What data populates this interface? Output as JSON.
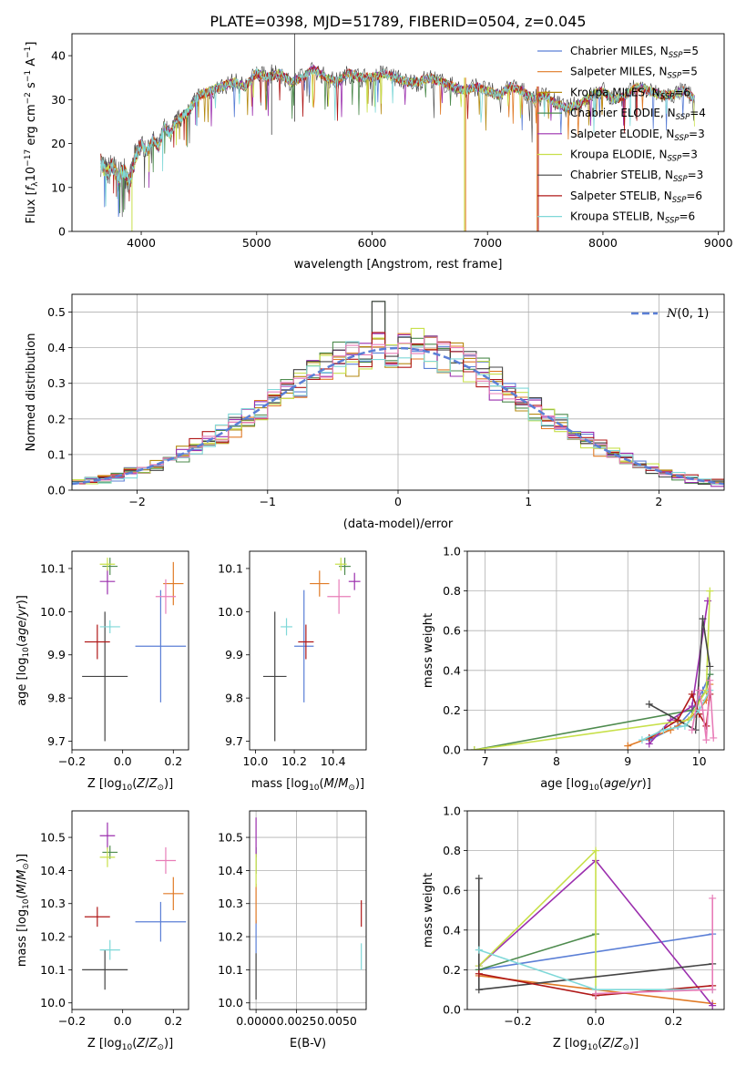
{
  "figure": {
    "title": "PLATE=0398, MJD=51789, FIBERID=0504, z=0.045"
  },
  "models": [
    {
      "label": "Chabrier MILES, N",
      "sub": "SSP",
      "tail": "=5",
      "color": "#5b7fd6"
    },
    {
      "label": "Salpeter MILES, N",
      "sub": "SSP",
      "tail": "=5",
      "color": "#e07a26"
    },
    {
      "label": "Kroupa MILES, N",
      "sub": "SSP",
      "tail": "=6",
      "color": "#b58a12"
    },
    {
      "label": "Chabrier ELODIE, N",
      "sub": "SSP",
      "tail": "=4",
      "color": "#4e8b4e"
    },
    {
      "label": "Salpeter ELODIE, N",
      "sub": "SSP",
      "tail": "=3",
      "color": "#9b2fae"
    },
    {
      "label": "Kroupa ELODIE, N",
      "sub": "SSP",
      "tail": "=3",
      "color": "#c8e04a"
    },
    {
      "label": "Chabrier STELIB, N",
      "sub": "SSP",
      "tail": "=3",
      "color": "#444444"
    },
    {
      "label": "Salpeter STELIB, N",
      "sub": "SSP",
      "tail": "=6",
      "color": "#b01818"
    },
    {
      "label": "Kroupa STELIB, N",
      "sub": "SSP",
      "tail": "=6",
      "color": "#7fd8d8"
    }
  ],
  "extra_colors": {
    "pink": "#e87db8"
  },
  "chart_data": [
    {
      "id": "spectrum",
      "type": "line",
      "xlabel": "wavelength [Angstrom, rest frame]",
      "ylabel": "Flux [f_λ 10^-17 erg cm^-2 s^-1 A^-1]",
      "xlim": [
        3400,
        9050
      ],
      "ylim": [
        0,
        45
      ],
      "xticks": [
        4000,
        5000,
        6000,
        7000,
        8000,
        9000
      ],
      "yticks": [
        0,
        10,
        20,
        30,
        40
      ],
      "x": [
        3650,
        3700,
        3750,
        3800,
        3850,
        3900,
        3950,
        4000,
        4050,
        4100,
        4150,
        4200,
        4250,
        4300,
        4350,
        4400,
        4450,
        4500,
        4600,
        4700,
        4800,
        4900,
        5000,
        5100,
        5200,
        5300,
        5400,
        5500,
        5600,
        5700,
        5800,
        5900,
        6000,
        6100,
        6200,
        6300,
        6400,
        6500,
        6600,
        6700,
        6800,
        6900,
        7000,
        7100,
        7200,
        7300,
        7400,
        7500,
        7600,
        7700,
        7800,
        7900,
        8000,
        8100,
        8200,
        8300,
        8400,
        8500,
        8600,
        8700,
        8800
      ],
      "y": [
        16,
        13,
        15,
        12,
        14,
        11,
        17,
        20,
        18,
        21,
        19,
        24,
        22,
        25,
        26,
        27,
        29,
        31,
        32,
        33,
        34,
        33,
        36,
        35,
        36,
        34,
        35,
        37,
        35,
        34,
        36,
        35,
        35,
        36,
        35,
        34,
        34,
        35,
        34,
        33,
        32,
        33,
        32,
        31,
        33,
        32,
        30,
        31,
        29,
        28,
        29,
        31,
        32,
        30,
        31,
        33,
        32,
        31,
        31,
        32,
        30
      ],
      "drops": [
        {
          "x": 3920,
          "to": 0,
          "model": 5
        },
        {
          "x": 6800,
          "to": 0,
          "model": 5
        },
        {
          "x": 6810,
          "to": 0,
          "model": 1
        },
        {
          "x": 7430,
          "to": 0,
          "model": 1
        },
        {
          "x": 7440,
          "to": 0,
          "model": 7
        }
      ]
    },
    {
      "id": "residuals",
      "type": "histogram",
      "xlabel": "(data-model)/error",
      "ylabel": "Normed distribution",
      "xlim": [
        -2.5,
        2.5
      ],
      "ylim": [
        0,
        0.55
      ],
      "xticks": [
        -2,
        -1,
        0,
        1,
        2
      ],
      "xticklabels": [
        "−2",
        "−1",
        "0",
        "1",
        "2"
      ],
      "yticks": [
        0.0,
        0.1,
        0.2,
        0.3,
        0.4,
        0.5
      ],
      "yticklabels": [
        "0.0",
        "0.1",
        "0.2",
        "0.3",
        "0.4",
        "0.5"
      ],
      "bin_width": 0.1,
      "reference": {
        "name": "N(0,1)",
        "mu": 0,
        "sigma": 1,
        "color": "#5b7fd6"
      }
    },
    {
      "id": "age_vs_Z",
      "type": "errorbar",
      "xlabel": "Z [log10(Z/Z⊙)]",
      "ylabel": "age [log10(age/yr)]",
      "xlim": [
        -0.2,
        0.26
      ],
      "ylim": [
        9.68,
        10.14
      ],
      "xticks": [
        -0.2,
        0.0,
        0.2
      ],
      "xticklabels": [
        "−0.2",
        "0.0",
        "0.2"
      ],
      "yticks": [
        9.7,
        9.8,
        9.9,
        10.0,
        10.1
      ],
      "yticklabels": [
        "9.7",
        "9.8",
        "9.9",
        "10.0",
        "10.1"
      ],
      "points": [
        {
          "c": 0,
          "x": 0.15,
          "xe": 0.1,
          "y": 9.92,
          "ye": 0.13
        },
        {
          "c": 1,
          "x": 0.2,
          "xe": 0.04,
          "y": 10.065,
          "ye": 0.05
        },
        {
          "c": 3,
          "x": -0.05,
          "xe": 0.03,
          "y": 10.105,
          "ye": 0.02
        },
        {
          "c": 4,
          "x": -0.06,
          "xe": 0.03,
          "y": 10.07,
          "ye": 0.03
        },
        {
          "c": 5,
          "x": -0.06,
          "xe": 0.03,
          "y": 10.11,
          "ye": 0.015
        },
        {
          "c": 6,
          "x": -0.07,
          "xe": 0.09,
          "y": 9.85,
          "ye": 0.15
        },
        {
          "c": 7,
          "x": -0.1,
          "xe": 0.05,
          "y": 9.93,
          "ye": 0.04
        },
        {
          "c": 8,
          "x": -0.05,
          "xe": 0.04,
          "y": 9.965,
          "ye": 0.015
        },
        {
          "c": 9,
          "x": 0.17,
          "xe": 0.04,
          "y": 10.035,
          "ye": 0.04
        }
      ]
    },
    {
      "id": "age_vs_mass",
      "type": "errorbar",
      "xlabel": "mass [log10(M/M⊙)]",
      "ylabel": "",
      "xlim": [
        9.97,
        10.57
      ],
      "ylim": [
        9.68,
        10.14
      ],
      "xticks": [
        10.0,
        10.2,
        10.4
      ],
      "xticklabels": [
        "10.0",
        "10.2",
        "10.4"
      ],
      "yticks": [
        9.7,
        9.8,
        9.9,
        10.0,
        10.1
      ],
      "yticklabels": [
        "9.7",
        "9.8",
        "9.9",
        "10.0",
        "10.1"
      ],
      "points": [
        {
          "c": 0,
          "x": 10.25,
          "xe": 0.05,
          "y": 9.92,
          "ye": 0.13
        },
        {
          "c": 1,
          "x": 10.33,
          "xe": 0.05,
          "y": 10.065,
          "ye": 0.03
        },
        {
          "c": 3,
          "x": 10.46,
          "xe": 0.03,
          "y": 10.105,
          "ye": 0.02
        },
        {
          "c": 4,
          "x": 10.51,
          "xe": 0.03,
          "y": 10.07,
          "ye": 0.02
        },
        {
          "c": 5,
          "x": 10.44,
          "xe": 0.03,
          "y": 10.11,
          "ye": 0.015
        },
        {
          "c": 6,
          "x": 10.1,
          "xe": 0.06,
          "y": 9.85,
          "ye": 0.15
        },
        {
          "c": 7,
          "x": 10.26,
          "xe": 0.04,
          "y": 9.93,
          "ye": 0.04
        },
        {
          "c": 8,
          "x": 10.16,
          "xe": 0.03,
          "y": 9.965,
          "ye": 0.02
        },
        {
          "c": 9,
          "x": 10.43,
          "xe": 0.06,
          "y": 10.035,
          "ye": 0.04
        }
      ]
    },
    {
      "id": "weight_vs_age",
      "type": "line",
      "xlabel": "age [log10(age/yr)]",
      "ylabel": "mass weight",
      "xlim": [
        6.75,
        10.35
      ],
      "ylim": [
        0,
        1.0
      ],
      "xticks": [
        7,
        8,
        9,
        10
      ],
      "xticklabels": [
        "7",
        "8",
        "9",
        "10"
      ],
      "yticks": [
        0.0,
        0.2,
        0.4,
        0.6,
        0.8,
        1.0
      ],
      "yticklabels": [
        "0.0",
        "0.2",
        "0.4",
        "0.6",
        "0.8",
        "1.0"
      ],
      "series": [
        {
          "c": 0,
          "x": [
            9.3,
            9.7,
            9.9,
            10.05,
            10.15
          ],
          "y": [
            0.05,
            0.12,
            0.2,
            0.3,
            0.38
          ]
        },
        {
          "c": 1,
          "x": [
            9.0,
            9.6,
            9.95,
            10.1,
            10.15
          ],
          "y": [
            0.02,
            0.1,
            0.18,
            0.25,
            0.33
          ]
        },
        {
          "c": 3,
          "x": [
            6.85,
            9.9,
            10.1,
            10.15
          ],
          "y": [
            0.0,
            0.2,
            0.3,
            0.38
          ]
        },
        {
          "c": 4,
          "x": [
            9.3,
            9.6,
            9.9,
            10.12
          ],
          "y": [
            0.03,
            0.15,
            0.22,
            0.75
          ]
        },
        {
          "c": 5,
          "x": [
            6.85,
            9.85,
            10.1,
            10.15
          ],
          "y": [
            0.0,
            0.15,
            0.3,
            0.8
          ]
        },
        {
          "c": 6,
          "x": [
            9.3,
            9.95,
            10.05,
            10.15
          ],
          "y": [
            0.23,
            0.1,
            0.66,
            0.42
          ]
        },
        {
          "c": 7,
          "x": [
            9.3,
            9.7,
            9.9,
            10.0,
            10.1,
            10.15
          ],
          "y": [
            0.06,
            0.15,
            0.28,
            0.18,
            0.12,
            0.28
          ]
        },
        {
          "c": 8,
          "x": [
            9.2,
            9.5,
            9.8,
            10.0,
            10.15
          ],
          "y": [
            0.05,
            0.1,
            0.12,
            0.2,
            0.3
          ]
        },
        {
          "c": 9,
          "x": [
            9.9,
            10.0,
            10.05,
            10.1,
            10.15,
            10.2
          ],
          "y": [
            0.1,
            0.3,
            0.2,
            0.05,
            0.35,
            0.06
          ]
        }
      ]
    },
    {
      "id": "mass_vs_Z",
      "type": "errorbar",
      "xlabel": "Z [log10(Z/Z⊙)]",
      "ylabel": "mass [log10(M/M⊙)]",
      "xlim": [
        -0.2,
        0.26
      ],
      "ylim": [
        9.98,
        10.58
      ],
      "xticks": [
        -0.2,
        0.0,
        0.2
      ],
      "xticklabels": [
        "−0.2",
        "0.0",
        "0.2"
      ],
      "yticks": [
        10.0,
        10.1,
        10.2,
        10.3,
        10.4,
        10.5
      ],
      "yticklabels": [
        "10.0",
        "10.1",
        "10.2",
        "10.3",
        "10.4",
        "10.5"
      ],
      "points": [
        {
          "c": 0,
          "x": 0.15,
          "xe": 0.1,
          "y": 10.245,
          "ye": 0.06
        },
        {
          "c": 1,
          "x": 0.2,
          "xe": 0.04,
          "y": 10.33,
          "ye": 0.05
        },
        {
          "c": 3,
          "x": -0.05,
          "xe": 0.03,
          "y": 10.455,
          "ye": 0.02
        },
        {
          "c": 4,
          "x": -0.06,
          "xe": 0.03,
          "y": 10.505,
          "ye": 0.04
        },
        {
          "c": 5,
          "x": -0.06,
          "xe": 0.03,
          "y": 10.44,
          "ye": 0.03
        },
        {
          "c": 6,
          "x": -0.07,
          "xe": 0.09,
          "y": 10.1,
          "ye": 0.06
        },
        {
          "c": 7,
          "x": -0.1,
          "xe": 0.05,
          "y": 10.26,
          "ye": 0.03
        },
        {
          "c": 8,
          "x": -0.05,
          "xe": 0.04,
          "y": 10.16,
          "ye": 0.03
        },
        {
          "c": 9,
          "x": 0.17,
          "xe": 0.04,
          "y": 10.43,
          "ye": 0.04
        }
      ]
    },
    {
      "id": "mass_vs_ebv",
      "type": "errorbar",
      "xlabel": "E(B-V)",
      "ylabel": "",
      "xlim": [
        -0.0004,
        0.0068
      ],
      "ylim": [
        9.98,
        10.58
      ],
      "xticks": [
        0.0,
        0.0025,
        0.005
      ],
      "xticklabels": [
        "0.0000",
        "0.0025",
        "0.0050"
      ],
      "yticks": [
        10.0,
        10.1,
        10.2,
        10.3,
        10.4,
        10.5
      ],
      "yticklabels": [
        "10.0",
        "10.1",
        "10.2",
        "10.3",
        "10.4",
        "10.5"
      ],
      "points": [
        {
          "c": 0,
          "x": 0.0,
          "xe": 0,
          "y": 10.2,
          "ye": 0.05
        },
        {
          "c": 1,
          "x": 0.0,
          "xe": 0,
          "y": 10.3,
          "ye": 0.06
        },
        {
          "c": 3,
          "x": 0.0,
          "xe": 0,
          "y": 10.43,
          "ye": 0.04
        },
        {
          "c": 4,
          "x": 0.0,
          "xe": 0,
          "y": 10.5,
          "ye": 0.06
        },
        {
          "c": 5,
          "x": 0.0,
          "xe": 0,
          "y": 10.4,
          "ye": 0.05
        },
        {
          "c": 6,
          "x": 0.0,
          "xe": 0,
          "y": 10.08,
          "ye": 0.07
        },
        {
          "c": 7,
          "x": 0.0065,
          "xe": 0,
          "y": 10.27,
          "ye": 0.04
        },
        {
          "c": 8,
          "x": 0.0065,
          "xe": 0,
          "y": 10.14,
          "ye": 0.04
        }
      ]
    },
    {
      "id": "weight_vs_Z",
      "type": "line",
      "xlabel": "Z [log10(Z/Z⊙)]",
      "ylabel": "mass weight",
      "xlim": [
        -0.33,
        0.33
      ],
      "ylim": [
        0,
        1.0
      ],
      "xticks": [
        -0.2,
        0.0,
        0.2
      ],
      "xticklabels": [
        "−0.2",
        "0.0",
        "0.2"
      ],
      "yticks": [
        0.0,
        0.2,
        0.4,
        0.6,
        0.8,
        1.0
      ],
      "yticklabels": [
        "0.0",
        "0.2",
        "0.4",
        "0.6",
        "0.8",
        "1.0"
      ],
      "series": [
        {
          "c": 0,
          "x": [
            -0.3,
            0.3
          ],
          "y": [
            0.2,
            0.38
          ]
        },
        {
          "c": 1,
          "x": [
            -0.3,
            0.3
          ],
          "y": [
            0.17,
            0.03
          ]
        },
        {
          "c": 3,
          "x": [
            -0.3,
            0.0
          ],
          "y": [
            0.2,
            0.38
          ]
        },
        {
          "c": 4,
          "x": [
            -0.3,
            0.0,
            0.3
          ],
          "y": [
            0.22,
            0.75,
            0.02
          ]
        },
        {
          "c": 5,
          "x": [
            -0.3,
            0.0,
            0.0
          ],
          "y": [
            0.22,
            0.8,
            0.1
          ]
        },
        {
          "c": 6,
          "x": [
            -0.3,
            -0.3,
            0.3
          ],
          "y": [
            0.66,
            0.1,
            0.23
          ]
        },
        {
          "c": 7,
          "x": [
            -0.3,
            0.0,
            0.3
          ],
          "y": [
            0.18,
            0.07,
            0.12
          ]
        },
        {
          "c": 8,
          "x": [
            -0.3,
            0.0,
            0.3
          ],
          "y": [
            0.3,
            0.1,
            0.1
          ]
        },
        {
          "c": 9,
          "x": [
            0.0,
            0.3,
            0.3
          ],
          "y": [
            0.08,
            0.1,
            0.56
          ]
        }
      ]
    }
  ]
}
